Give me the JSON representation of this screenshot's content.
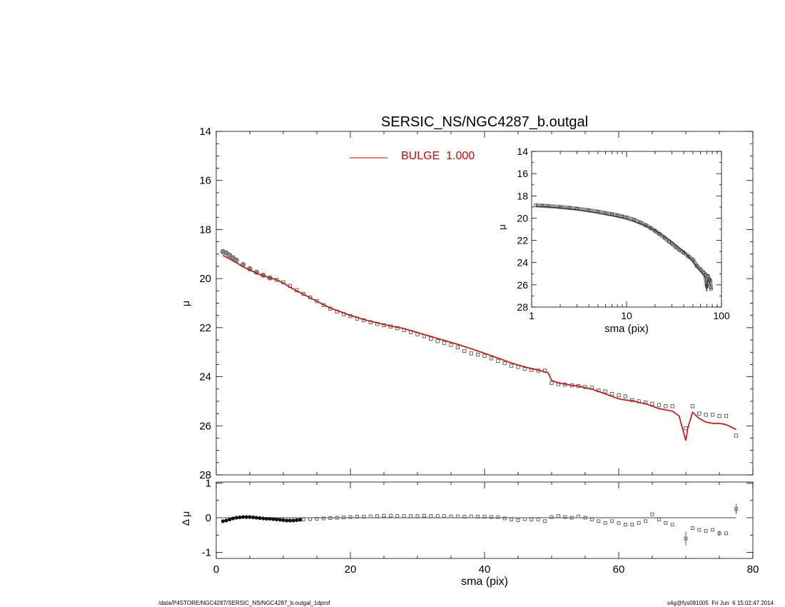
{
  "title": "SERSIC_NS/NGC4287_b.outgal",
  "footer": {
    "left": "/data/P4STORE/NGC4287/SERSIC_NS/NGC4287_b.outgal_1dprof",
    "right": "s4g@fys091005  Fri Jun  6 15:02:47 2014"
  },
  "colors": {
    "model": "#e00000",
    "data": "#555555",
    "axes": "#000000"
  },
  "chart_data": [
    {
      "id": "main",
      "type": "scatter",
      "title": "SERSIC_NS/NGC4287_b.outgal",
      "xlabel": "",
      "ylabel": "μ",
      "xlim": [
        0,
        80
      ],
      "ylim": [
        28,
        14
      ],
      "y_inverted": true,
      "yticks": [
        "14",
        "16",
        "18",
        "20",
        "22",
        "24",
        "26",
        "28"
      ],
      "legend": {
        "position": "top-center",
        "entries": [
          {
            "label": "BULGE  1.000",
            "color": "#e00000"
          }
        ]
      },
      "series": [
        {
          "name": "data",
          "marker": "square",
          "x": [
            1,
            1.5,
            2,
            2.5,
            3,
            4,
            5,
            6,
            7,
            8,
            9,
            10,
            11,
            12,
            13,
            14,
            15,
            16,
            17,
            18,
            19,
            20,
            21,
            22,
            23,
            24,
            25,
            26,
            27,
            28,
            29,
            30,
            31,
            32,
            33,
            34,
            35,
            36,
            37,
            38,
            39,
            40,
            41,
            42,
            43,
            44,
            45,
            46,
            47,
            48,
            49,
            50,
            51,
            52,
            53,
            54,
            55,
            56,
            57,
            58,
            59,
            60,
            61,
            62,
            63,
            64,
            65,
            66,
            67,
            68,
            70,
            71,
            72,
            73,
            74,
            75,
            76,
            77.5
          ],
          "y": [
            18.9,
            18.95,
            19.05,
            19.15,
            19.25,
            19.43,
            19.6,
            19.74,
            19.86,
            19.97,
            20.05,
            20.15,
            20.3,
            20.47,
            20.62,
            20.77,
            20.92,
            21.08,
            21.22,
            21.35,
            21.45,
            21.53,
            21.63,
            21.7,
            21.78,
            21.85,
            21.9,
            21.95,
            22.02,
            22.1,
            22.18,
            22.27,
            22.35,
            22.45,
            22.55,
            22.62,
            22.7,
            22.8,
            22.95,
            23.05,
            23.1,
            23.15,
            23.25,
            23.35,
            23.45,
            23.55,
            23.6,
            23.68,
            23.72,
            23.75,
            23.75,
            24.25,
            24.3,
            24.32,
            24.35,
            24.38,
            24.42,
            24.45,
            24.55,
            24.6,
            24.7,
            24.75,
            24.8,
            24.95,
            25.0,
            25.05,
            25.1,
            25.15,
            25.2,
            25.2,
            26.1,
            25.2,
            25.5,
            25.55,
            25.55,
            25.6,
            25.6,
            26.4
          ]
        },
        {
          "name": "model",
          "type": "line",
          "x": [
            1,
            2,
            3,
            4,
            5,
            6,
            7,
            8,
            9,
            10,
            11,
            12,
            13,
            14,
            15,
            16,
            17,
            18,
            19,
            20,
            21,
            22,
            23,
            24,
            25,
            26,
            27,
            28,
            29,
            30,
            31,
            32,
            33,
            34,
            35,
            36,
            37,
            38,
            39,
            40,
            41,
            42,
            43,
            44,
            45,
            46,
            47,
            48,
            49,
            49.5,
            50,
            51,
            52,
            53,
            54,
            55,
            56,
            57,
            58,
            59,
            60,
            61,
            62,
            63,
            64,
            65,
            66,
            67,
            68,
            69,
            70,
            70.3,
            71,
            72,
            73,
            74,
            75,
            76,
            77.5
          ],
          "y": [
            19.05,
            19.2,
            19.35,
            19.52,
            19.65,
            19.78,
            19.88,
            19.97,
            20.05,
            20.18,
            20.35,
            20.5,
            20.64,
            20.78,
            20.92,
            21.06,
            21.2,
            21.3,
            21.4,
            21.5,
            21.58,
            21.67,
            21.74,
            21.8,
            21.87,
            21.93,
            21.98,
            22.04,
            22.12,
            22.2,
            22.28,
            22.36,
            22.44,
            22.52,
            22.6,
            22.68,
            22.77,
            22.86,
            22.95,
            23.05,
            23.14,
            23.24,
            23.34,
            23.44,
            23.52,
            23.6,
            23.67,
            23.73,
            23.8,
            23.85,
            24.15,
            24.25,
            24.3,
            24.35,
            24.38,
            24.45,
            24.5,
            24.6,
            24.7,
            24.8,
            24.9,
            24.95,
            24.97,
            25.05,
            25.1,
            25.2,
            25.3,
            25.35,
            25.4,
            25.6,
            26.6,
            26.1,
            25.45,
            25.7,
            25.85,
            25.9,
            25.9,
            25.95,
            26.15
          ]
        }
      ]
    },
    {
      "id": "residual",
      "type": "scatter",
      "xlabel": "sma (pix)",
      "ylabel": "Δ μ",
      "xlim": [
        0,
        80
      ],
      "ylim": [
        -1.1,
        1.1
      ],
      "xticks": [
        "0",
        "20",
        "40",
        "60",
        "80"
      ],
      "yticks": [
        "1",
        "0",
        "-1"
      ],
      "series": [
        {
          "name": "residual",
          "marker": "square",
          "x": [
            1,
            1.5,
            2,
            2.5,
            3,
            3.5,
            4,
            4.5,
            5,
            5.5,
            6,
            6.5,
            7,
            7.5,
            8,
            8.5,
            9,
            9.5,
            10,
            10.5,
            11,
            11.5,
            12,
            12.5,
            13,
            14,
            15,
            16,
            17,
            18,
            19,
            20,
            21,
            22,
            23,
            24,
            25,
            26,
            27,
            28,
            29,
            30,
            31,
            32,
            33,
            34,
            35,
            36,
            37,
            38,
            39,
            40,
            41,
            42,
            43,
            44,
            45,
            46,
            47,
            48,
            49,
            50,
            51,
            52,
            53,
            54,
            55,
            56,
            57,
            58,
            59,
            60,
            61,
            62,
            63,
            64,
            65,
            66,
            67,
            68,
            70,
            71,
            72,
            73,
            74,
            75,
            76,
            77.5
          ],
          "y": [
            -0.1,
            -0.08,
            -0.05,
            -0.02,
            0,
            0.01,
            0.02,
            0.02,
            0.02,
            0.01,
            0,
            -0.01,
            -0.02,
            -0.03,
            -0.03,
            -0.04,
            -0.05,
            -0.06,
            -0.07,
            -0.08,
            -0.08,
            -0.08,
            -0.07,
            -0.06,
            -0.05,
            -0.04,
            -0.03,
            -0.02,
            -0.01,
            0,
            0.01,
            0.02,
            0.03,
            0.03,
            0.04,
            0.05,
            0.06,
            0.06,
            0.05,
            0.05,
            0.05,
            0.05,
            0.06,
            0.05,
            0.05,
            0.05,
            0.04,
            0.04,
            0.03,
            0.04,
            0.03,
            0.03,
            0.02,
            0.02,
            -0.02,
            -0.05,
            -0.07,
            -0.04,
            -0.05,
            -0.05,
            -0.1,
            0.02,
            0.05,
            0.02,
            0,
            0.04,
            0,
            -0.05,
            -0.1,
            -0.15,
            -0.1,
            -0.15,
            -0.2,
            -0.2,
            -0.15,
            -0.1,
            0.1,
            -0.05,
            -0.15,
            -0.2,
            -0.6,
            -0.3,
            -0.35,
            -0.38,
            -0.35,
            -0.45,
            -0.45,
            0.25
          ],
          "errorbars": [
            {
              "x": 70,
              "y": -0.6,
              "err": 0.2
            },
            {
              "x": 75,
              "y": -0.45,
              "err": 0.08
            },
            {
              "x": 77.5,
              "y": 0.25,
              "err": 0.15
            }
          ]
        }
      ]
    },
    {
      "id": "inset",
      "type": "scatter",
      "xlabel": "sma (pix)",
      "ylabel": "μ",
      "xscale": "log",
      "xlim": [
        1,
        100
      ],
      "ylim": [
        28,
        14
      ],
      "y_inverted": true,
      "xticks": [
        "1",
        "10",
        "100"
      ],
      "yticks": [
        "14",
        "16",
        "18",
        "20",
        "22",
        "24",
        "26",
        "28"
      ],
      "series": [
        {
          "name": "data",
          "marker": "square",
          "x": [
            1.1,
            1.3,
            1.5,
            2,
            2.5,
            3,
            4,
            5,
            6,
            7,
            8,
            9,
            10,
            12,
            14,
            16,
            18,
            20,
            22,
            25,
            28,
            30,
            33,
            36,
            40,
            45,
            50,
            55,
            60,
            65,
            68,
            70,
            72,
            74,
            76,
            77.5
          ],
          "y": [
            18.85,
            18.88,
            18.92,
            19.0,
            19.08,
            19.15,
            19.3,
            19.42,
            19.55,
            19.65,
            19.75,
            19.85,
            19.95,
            20.15,
            20.4,
            20.65,
            20.9,
            21.15,
            21.4,
            21.75,
            22.1,
            22.3,
            22.6,
            22.85,
            23.1,
            23.45,
            23.75,
            24.3,
            24.6,
            24.9,
            25.1,
            26.1,
            25.2,
            25.5,
            25.6,
            26.4
          ]
        },
        {
          "name": "model",
          "type": "line",
          "x": [
            1.1,
            1.5,
            2,
            3,
            5,
            7,
            10,
            15,
            20,
            30,
            40,
            50,
            60,
            68,
            70,
            72,
            77.5
          ],
          "y": [
            18.95,
            19.0,
            19.08,
            19.25,
            19.55,
            19.8,
            20.1,
            20.6,
            21.1,
            22.1,
            23.0,
            23.9,
            24.8,
            25.4,
            26.6,
            25.5,
            26.15
          ]
        }
      ]
    }
  ]
}
